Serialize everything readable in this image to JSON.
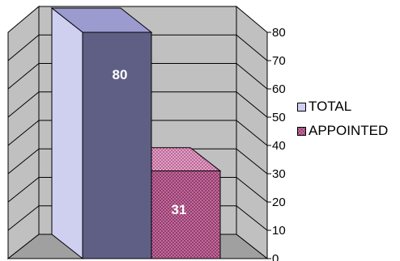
{
  "chart_data": {
    "type": "bar",
    "style": "3d",
    "categories": [
      ""
    ],
    "series": [
      {
        "name": "TOTAL",
        "values": [
          80
        ],
        "data_label": "",
        "color": "#cfcff0"
      },
      {
        "name": "APPOINTED",
        "values": [
          31
        ],
        "data_label": "31",
        "color": "#8a3060"
      }
    ],
    "annotations": [
      "80"
    ],
    "ylim": [
      0,
      80
    ],
    "yticks": [
      "0",
      "10",
      "20",
      "30",
      "40",
      "50",
      "60",
      "70",
      "80"
    ],
    "grid": true,
    "legend": "right",
    "wall_color": "#c0c0c0",
    "front_bar_color": "#5f5f86"
  }
}
